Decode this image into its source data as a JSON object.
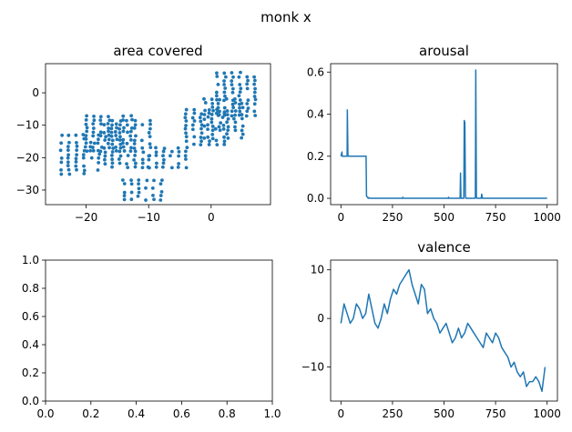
{
  "figure": {
    "suptitle": "monk x"
  },
  "chart_data": [
    {
      "type": "scatter",
      "title": "area covered",
      "xlim": [
        -26.5,
        9.5
      ],
      "ylim": [
        -34.5,
        9
      ],
      "xticks": [
        -20,
        -10,
        0
      ],
      "yticks": [
        0,
        -10,
        -20,
        -30
      ],
      "color": "#1f77b4",
      "clusters": [
        {
          "x": [
            -24,
            -17
          ],
          "y": [
            -25,
            -12
          ],
          "step": 1.2
        },
        {
          "x": [
            -20,
            -12
          ],
          "y": [
            -18,
            -7
          ],
          "step": 1.2
        },
        {
          "x": [
            -17,
            -9
          ],
          "y": [
            -23,
            -8
          ],
          "step": 1.2
        },
        {
          "x": [
            -14,
            -7
          ],
          "y": [
            -33,
            -26
          ],
          "step": 1.2
        },
        {
          "x": [
            -10,
            -3
          ],
          "y": [
            -23,
            -16
          ],
          "step": 1.2
        },
        {
          "x": [
            -4,
            2
          ],
          "y": [
            -16,
            -5
          ],
          "step": 1.2
        },
        {
          "x": [
            -1,
            5
          ],
          "y": [
            -14,
            -1
          ],
          "step": 1.2
        },
        {
          "x": [
            1,
            8
          ],
          "y": [
            -7,
            7
          ],
          "step": 1.2
        }
      ]
    },
    {
      "type": "line",
      "title": "arousal",
      "xlim": [
        -50,
        1050
      ],
      "ylim": [
        -0.03,
        0.64
      ],
      "xticks": [
        0,
        250,
        500,
        750,
        1000
      ],
      "yticks": [
        0.0,
        0.2,
        0.4,
        0.6
      ],
      "ytick_labels": [
        "0.0",
        "0.2",
        "0.4",
        "0.6"
      ],
      "color": "#1f77b4",
      "x": [
        0,
        5,
        6,
        10,
        12,
        30,
        31,
        34,
        36,
        122,
        124,
        130,
        132,
        135,
        140,
        298,
        300,
        302,
        520,
        522,
        524,
        578,
        580,
        582,
        584,
        596,
        598,
        601,
        604,
        606,
        652,
        654,
        657,
        660,
        665,
        680,
        683,
        686,
        700,
        820,
        1000
      ],
      "y": [
        0.2,
        0.22,
        0.2,
        0.2,
        0.2,
        0.2,
        0.42,
        0.2,
        0.2,
        0.2,
        0.01,
        0.005,
        0.0,
        0.003,
        0.0,
        0.0,
        0.005,
        0.0,
        0.0,
        0.005,
        0.0,
        0.0,
        0.12,
        0.005,
        0.0,
        0.0,
        0.37,
        0.36,
        0.01,
        0.0,
        0.0,
        0.61,
        0.005,
        0.0,
        0.0,
        0.0,
        0.02,
        0.0,
        0.0,
        0.0,
        0.0
      ]
    },
    {
      "type": "empty",
      "title": "",
      "xlim": [
        0,
        1
      ],
      "ylim": [
        0,
        1
      ],
      "xticks": [
        0,
        0.2,
        0.4,
        0.6,
        0.8,
        1.0
      ],
      "yticks": [
        0,
        0.2,
        0.4,
        0.6,
        0.8,
        1.0
      ],
      "xtick_labels": [
        "0.0",
        "0.2",
        "0.4",
        "0.6",
        "0.8",
        "1.0"
      ],
      "ytick_labels": [
        "0.0",
        "0.2",
        "0.4",
        "0.6",
        "0.8",
        "1.0"
      ]
    },
    {
      "type": "line",
      "title": "valence",
      "xlim": [
        -50,
        1050
      ],
      "ylim": [
        -17,
        12
      ],
      "xticks": [
        0,
        250,
        500,
        750,
        1000
      ],
      "yticks": [
        10,
        0,
        -10
      ],
      "color": "#1f77b4",
      "x": [
        0,
        15,
        30,
        45,
        60,
        75,
        90,
        105,
        120,
        135,
        150,
        165,
        180,
        195,
        210,
        225,
        240,
        255,
        270,
        285,
        300,
        315,
        330,
        345,
        360,
        375,
        390,
        405,
        420,
        435,
        450,
        465,
        480,
        495,
        510,
        525,
        540,
        555,
        570,
        585,
        600,
        615,
        630,
        645,
        660,
        675,
        690,
        705,
        720,
        735,
        750,
        765,
        780,
        795,
        810,
        825,
        840,
        855,
        870,
        885,
        900,
        915,
        930,
        945,
        960,
        975,
        990
      ],
      "y": [
        -1,
        3,
        1,
        -1,
        0,
        3,
        2,
        0,
        1,
        5,
        2,
        -1,
        -2,
        0,
        3,
        1,
        4,
        6,
        5,
        7,
        8,
        9,
        10,
        7,
        5,
        3,
        7,
        6,
        1,
        2,
        0,
        -1,
        -3,
        -2,
        -1,
        -3,
        -5,
        -4,
        -2,
        -4,
        -3,
        -1,
        -2,
        -3,
        -4,
        -5,
        -6,
        -3,
        -4,
        -5,
        -3,
        -4,
        -6,
        -7,
        -8,
        -10,
        -9,
        -11,
        -12,
        -11,
        -14,
        -13,
        -13,
        -12,
        -13,
        -15,
        -10
      ]
    }
  ]
}
